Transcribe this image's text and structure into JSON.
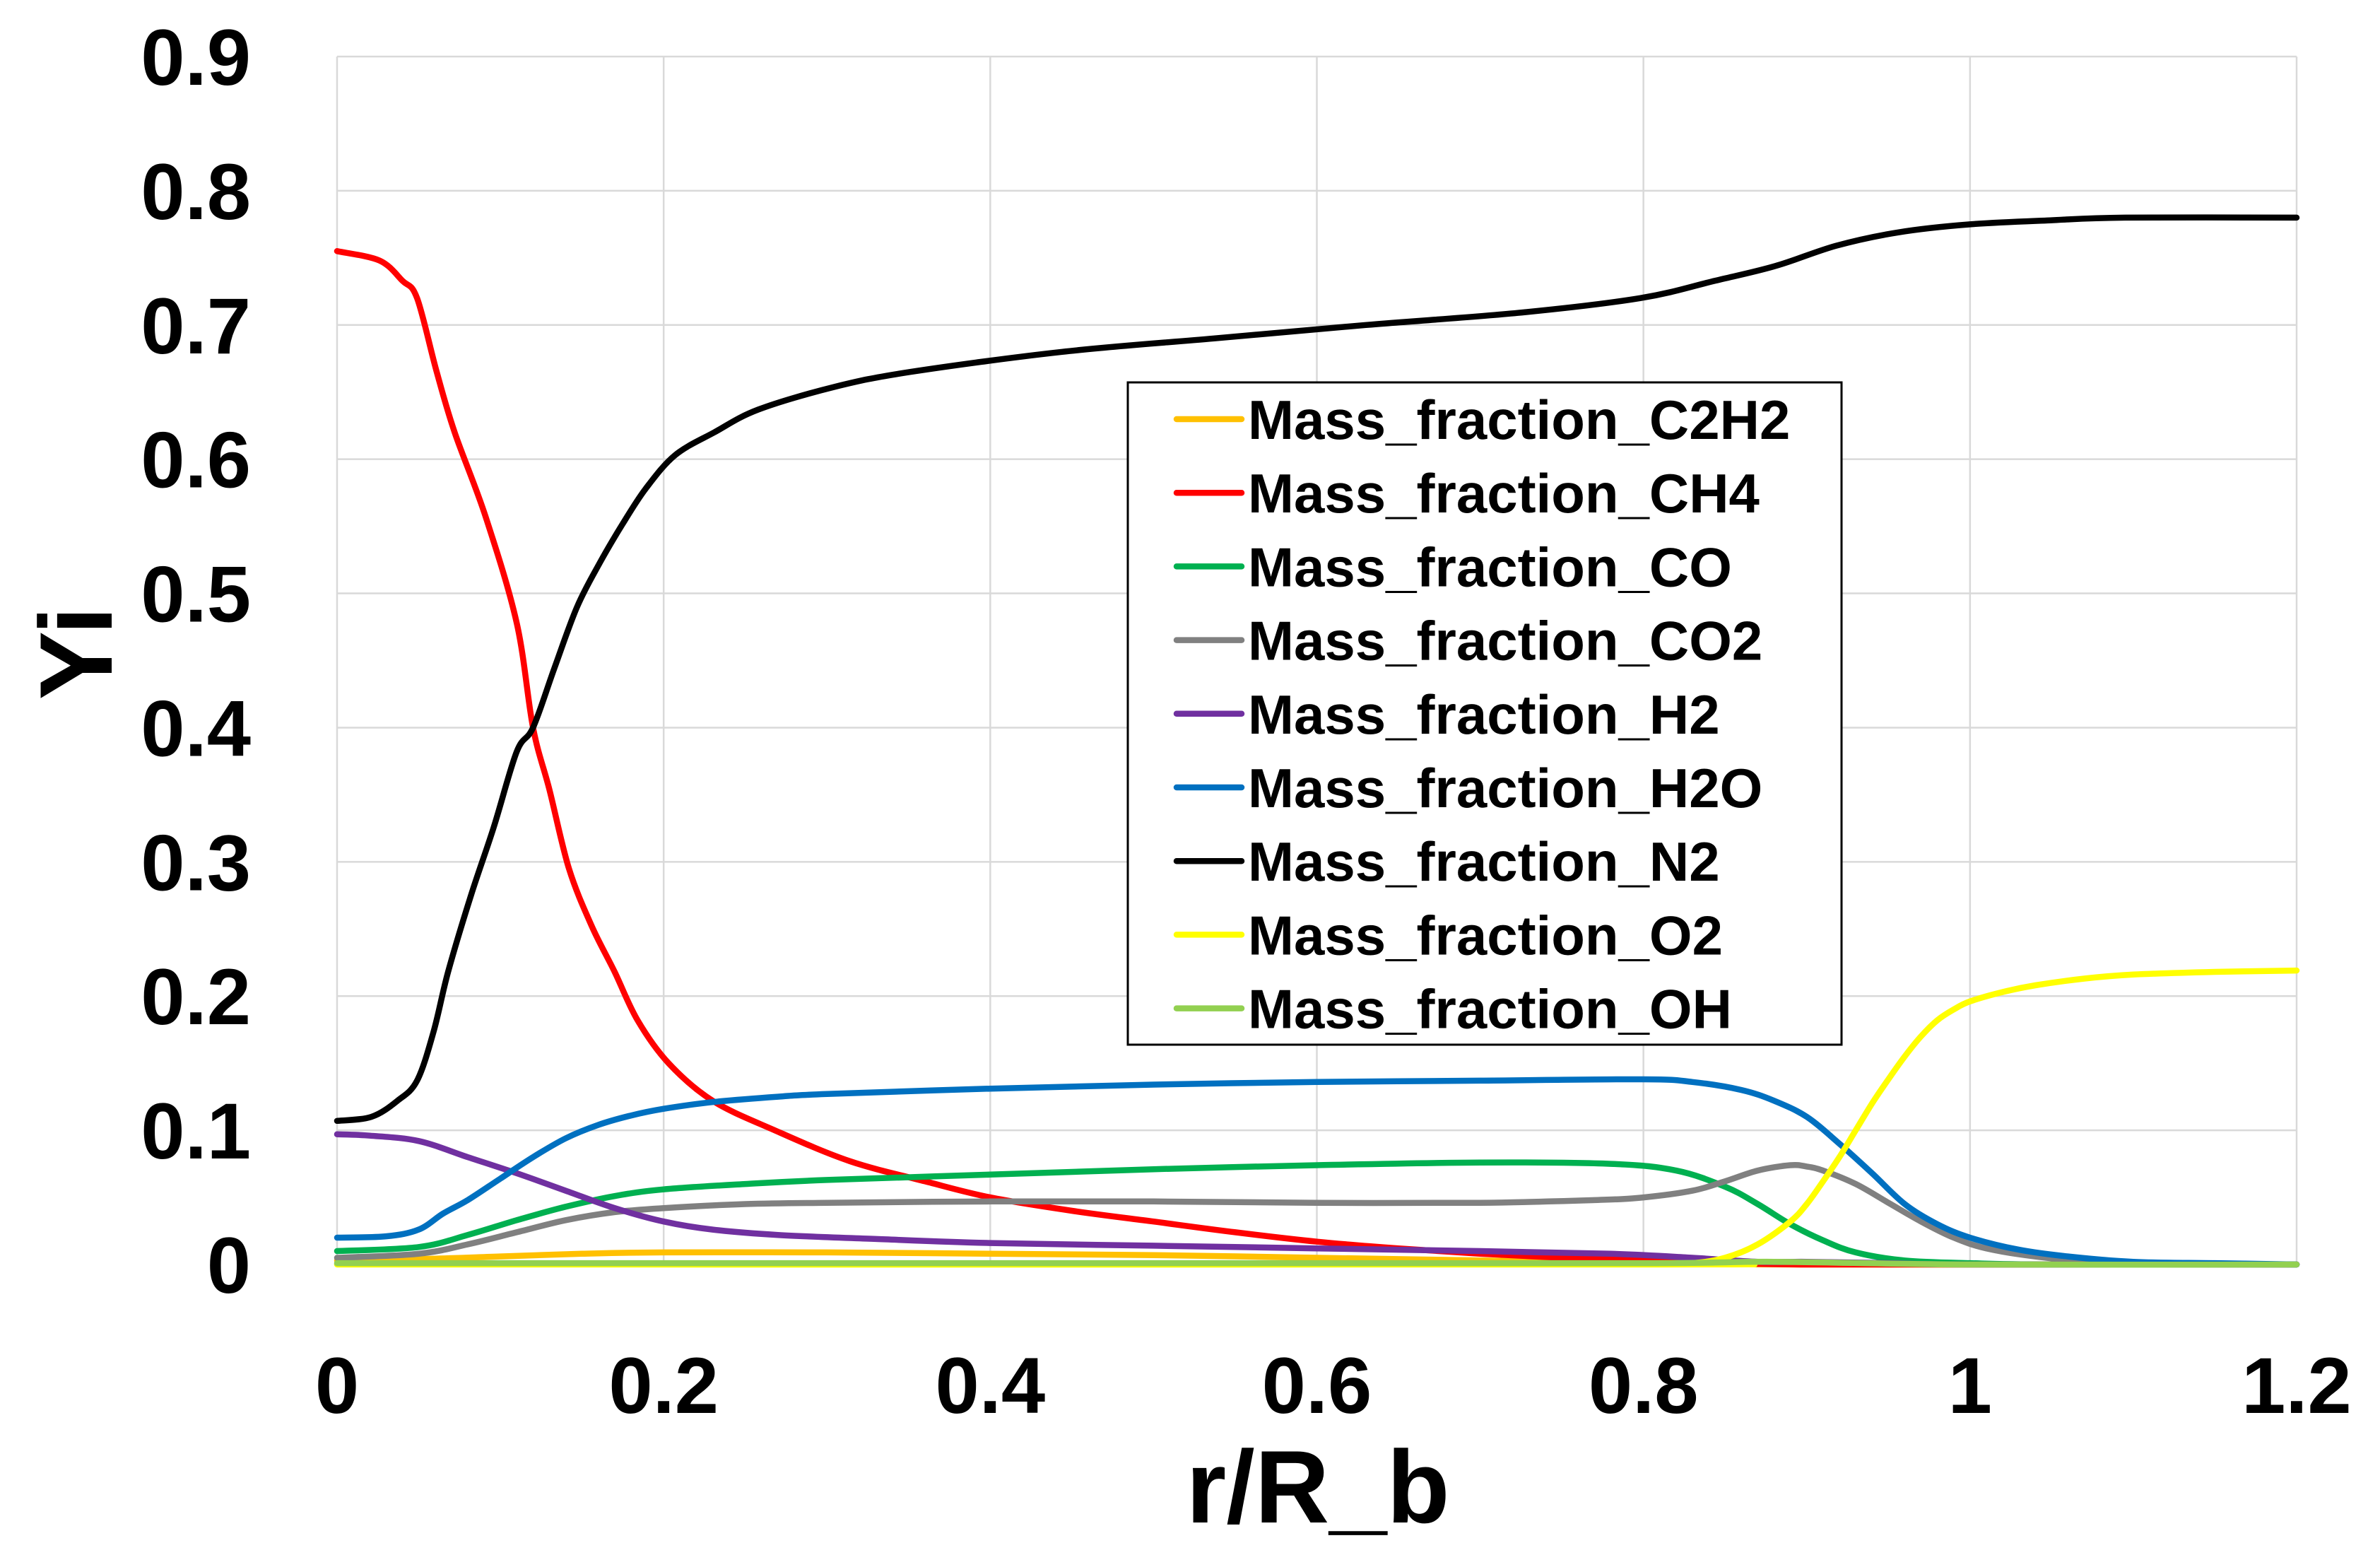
{
  "chart_data": {
    "type": "line",
    "xlabel": "r/R_b",
    "ylabel": "Yi",
    "xlim": [
      0,
      1.2
    ],
    "ylim": [
      0,
      0.9
    ],
    "x_ticks": [
      "0",
      "0.2",
      "0.4",
      "0.6",
      "0.8",
      "1",
      "1.2"
    ],
    "y_ticks": [
      "0",
      "0.1",
      "0.2",
      "0.3",
      "0.4",
      "0.5",
      "0.6",
      "0.7",
      "0.8",
      "0.9"
    ],
    "grid": true,
    "legend_position": "inside-right",
    "series": [
      {
        "name": "Mass_fraction_C2H2",
        "color": "#FFC000",
        "x": [
          0,
          0.05,
          0.1,
          0.15,
          0.2,
          0.3,
          0.4,
          0.5,
          0.6,
          0.7,
          0.8,
          0.9,
          1.2
        ],
        "y": [
          0.003,
          0.004,
          0.006,
          0.008,
          0.009,
          0.009,
          0.008,
          0.007,
          0.005,
          0.003,
          0.001,
          0,
          0
        ]
      },
      {
        "name": "Mass_fraction_CH4",
        "color": "#FF0000",
        "x": [
          0,
          0.026,
          0.04,
          0.049,
          0.061,
          0.072,
          0.091,
          0.11,
          0.12,
          0.13,
          0.142,
          0.156,
          0.17,
          0.184,
          0.203,
          0.23,
          0.268,
          0.314,
          0.36,
          0.4,
          0.45,
          0.5,
          0.55,
          0.6,
          0.65,
          0.7,
          0.75,
          0.8,
          0.85,
          0.9,
          1.0,
          1.2
        ],
        "y": [
          0.755,
          0.748,
          0.733,
          0.72,
          0.665,
          0.62,
          0.557,
          0.478,
          0.4,
          0.354,
          0.295,
          0.252,
          0.218,
          0.182,
          0.15,
          0.122,
          0.1,
          0.077,
          0.062,
          0.05,
          0.04,
          0.032,
          0.024,
          0.017,
          0.012,
          0.008,
          0.005,
          0.003,
          0.001,
          0,
          0,
          0
        ]
      },
      {
        "name": "Mass_fraction_CO",
        "color": "#00B050",
        "x": [
          0,
          0.05,
          0.08,
          0.11,
          0.14,
          0.17,
          0.2,
          0.25,
          0.3,
          0.4,
          0.5,
          0.6,
          0.7,
          0.78,
          0.82,
          0.85,
          0.87,
          0.89,
          0.91,
          0.93,
          0.96,
          1.0,
          1.05,
          1.2
        ],
        "y": [
          0.01,
          0.013,
          0.022,
          0.033,
          0.043,
          0.051,
          0.056,
          0.06,
          0.063,
          0.067,
          0.071,
          0.074,
          0.076,
          0.075,
          0.07,
          0.058,
          0.045,
          0.03,
          0.018,
          0.009,
          0.003,
          0.001,
          0,
          0
        ]
      },
      {
        "name": "Mass_fraction_CO2",
        "color": "#808080",
        "x": [
          0,
          0.05,
          0.08,
          0.11,
          0.14,
          0.17,
          0.2,
          0.25,
          0.3,
          0.4,
          0.5,
          0.6,
          0.7,
          0.77,
          0.8,
          0.83,
          0.85,
          0.87,
          0.89,
          0.9,
          0.91,
          0.93,
          0.95,
          0.97,
          0.99,
          1.01,
          1.04,
          1.08,
          1.15,
          1.2
        ],
        "y": [
          0.005,
          0.008,
          0.015,
          0.024,
          0.033,
          0.039,
          0.042,
          0.045,
          0.046,
          0.047,
          0.047,
          0.046,
          0.046,
          0.048,
          0.05,
          0.055,
          0.062,
          0.07,
          0.074,
          0.073,
          0.07,
          0.06,
          0.046,
          0.032,
          0.02,
          0.012,
          0.006,
          0.002,
          0,
          0
        ]
      },
      {
        "name": "Mass_fraction_H2",
        "color": "#7030A0",
        "x": [
          0,
          0.02,
          0.05,
          0.08,
          0.11,
          0.14,
          0.17,
          0.2,
          0.23,
          0.27,
          0.33,
          0.4,
          0.5,
          0.6,
          0.7,
          0.78,
          0.83,
          0.87,
          0.9,
          0.95,
          1.0,
          1.2
        ],
        "y": [
          0.097,
          0.096,
          0.092,
          0.08,
          0.068,
          0.055,
          0.042,
          0.032,
          0.026,
          0.022,
          0.019,
          0.016,
          0.014,
          0.012,
          0.01,
          0.008,
          0.005,
          0.002,
          0.002,
          0.001,
          0,
          0
        ]
      },
      {
        "name": "Mass_fraction_H2O",
        "color": "#0070C0",
        "x": [
          0,
          0.03,
          0.05,
          0.065,
          0.08,
          0.1,
          0.12,
          0.14,
          0.16,
          0.18,
          0.2,
          0.23,
          0.27,
          0.3,
          0.4,
          0.5,
          0.6,
          0.7,
          0.8,
          0.83,
          0.86,
          0.88,
          0.9,
          0.92,
          0.94,
          0.96,
          0.98,
          1.0,
          1.03,
          1.06,
          1.1,
          1.15,
          1.2
        ],
        "y": [
          0.02,
          0.021,
          0.026,
          0.038,
          0.048,
          0.064,
          0.08,
          0.094,
          0.104,
          0.111,
          0.116,
          0.121,
          0.125,
          0.127,
          0.131,
          0.134,
          0.136,
          0.137,
          0.138,
          0.136,
          0.13,
          0.122,
          0.11,
          0.09,
          0.068,
          0.045,
          0.03,
          0.02,
          0.011,
          0.006,
          0.002,
          0.001,
          0
        ]
      },
      {
        "name": "Mass_fraction_N2",
        "color": "#000000",
        "x": [
          0,
          0.021,
          0.037,
          0.049,
          0.059,
          0.068,
          0.082,
          0.096,
          0.11,
          0.12,
          0.133,
          0.147,
          0.161,
          0.175,
          0.189,
          0.207,
          0.231,
          0.258,
          0.305,
          0.351,
          0.444,
          0.537,
          0.63,
          0.723,
          0.798,
          0.844,
          0.881,
          0.918,
          0.956,
          1.0,
          1.049,
          1.095,
          1.2
        ],
        "y": [
          0.107,
          0.11,
          0.122,
          0.137,
          0.173,
          0.218,
          0.275,
          0.326,
          0.382,
          0.4,
          0.444,
          0.49,
          0.523,
          0.552,
          0.578,
          0.603,
          0.62,
          0.637,
          0.654,
          0.665,
          0.68,
          0.69,
          0.7,
          0.709,
          0.72,
          0.733,
          0.744,
          0.759,
          0.769,
          0.775,
          0.778,
          0.78,
          0.78
        ]
      },
      {
        "name": "Mass_fraction_O2",
        "color": "#FFFF00",
        "x": [
          0,
          0.8,
          0.83,
          0.85,
          0.87,
          0.89,
          0.9,
          0.91,
          0.92,
          0.93,
          0.94,
          0.95,
          0.96,
          0.97,
          0.98,
          0.99,
          1.0,
          1.02,
          1.04,
          1.07,
          1.1,
          1.15,
          1.2
        ],
        "y": [
          0,
          0,
          0.001,
          0.005,
          0.015,
          0.032,
          0.045,
          0.062,
          0.08,
          0.1,
          0.12,
          0.138,
          0.155,
          0.17,
          0.182,
          0.19,
          0.196,
          0.203,
          0.208,
          0.213,
          0.216,
          0.218,
          0.219
        ]
      },
      {
        "name": "Mass_fraction_OH",
        "color": "#92D050",
        "x": [
          0,
          0.5,
          0.8,
          0.88,
          1.0,
          1.2
        ],
        "y": [
          0.001,
          0.001,
          0.001,
          0.002,
          0,
          0
        ]
      }
    ]
  }
}
